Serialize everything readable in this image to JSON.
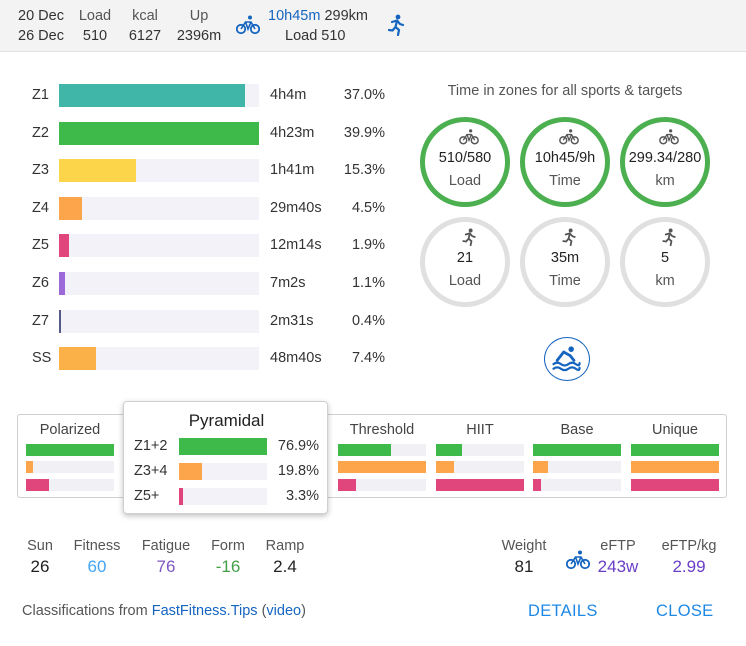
{
  "header": {
    "date_from": "20 Dec",
    "date_to": "26 Dec",
    "load_label": "Load",
    "load_value": "510",
    "kcal_label": "kcal",
    "kcal_value": "6127",
    "up_label": "Up",
    "up_value": "2396m",
    "ride_time": "10h45m",
    "ride_distance": "299km",
    "ride_load": "Load 510"
  },
  "zones": [
    {
      "name": "Z1",
      "time": "4h4m",
      "pct": "37.0%",
      "fill": 0.93,
      "color": "#3fb6a8"
    },
    {
      "name": "Z2",
      "time": "4h23m",
      "pct": "39.9%",
      "fill": 1.0,
      "color": "#3dba4a"
    },
    {
      "name": "Z3",
      "time": "1h41m",
      "pct": "15.3%",
      "fill": 0.385,
      "color": "#fdd54b"
    },
    {
      "name": "Z4",
      "time": "29m40s",
      "pct": "4.5%",
      "fill": 0.115,
      "color": "#fca54b"
    },
    {
      "name": "Z5",
      "time": "12m14s",
      "pct": "1.9%",
      "fill": 0.05,
      "color": "#e0457b"
    },
    {
      "name": "Z6",
      "time": "7m2s",
      "pct": "1.1%",
      "fill": 0.03,
      "color": "#9d68d8"
    },
    {
      "name": "Z7",
      "time": "2m31s",
      "pct": "0.4%",
      "fill": 0.01,
      "color": "#555a8a"
    },
    {
      "name": "SS",
      "time": "48m40s",
      "pct": "7.4%",
      "fill": 0.185,
      "color": "#fcb148"
    }
  ],
  "targets": {
    "title": "Time in zones for all sports & targets",
    "ride": [
      {
        "value": "510/580",
        "label": "Load",
        "icon": "bike-icon"
      },
      {
        "value": "10h45/9h",
        "label": "Time",
        "icon": "bike-icon"
      },
      {
        "value": "299.34/280",
        "label": "km",
        "icon": "bike-icon"
      }
    ],
    "run": [
      {
        "value": "21",
        "label": "Load",
        "icon": "run-icon"
      },
      {
        "value": "35m",
        "label": "Time",
        "icon": "run-icon"
      },
      {
        "value": "5",
        "label": "km",
        "icon": "run-icon"
      }
    ]
  },
  "classification": {
    "columns": [
      {
        "name": "Polarized",
        "bars": [
          1.0,
          0.08,
          0.26
        ]
      },
      {
        "name": "Threshold",
        "bars": [
          0.6,
          1.0,
          0.2
        ]
      },
      {
        "name": "HIIT",
        "bars": [
          0.3,
          0.2,
          1.0
        ]
      },
      {
        "name": "Base",
        "bars": [
          1.0,
          0.17,
          0.09
        ]
      },
      {
        "name": "Unique",
        "bars": [
          1.0,
          1.0,
          1.0
        ]
      }
    ],
    "bar_colors": [
      "#3dba4a",
      "#fca54b",
      "#e0457b"
    ]
  },
  "popup": {
    "title": "Pyramidal",
    "rows": [
      {
        "name": "Z1+2",
        "pct": "76.9%",
        "fill": 1.0,
        "color": "#3dba4a"
      },
      {
        "name": "Z3+4",
        "pct": "19.8%",
        "fill": 0.26,
        "color": "#fca54b"
      },
      {
        "name": "Z5+",
        "pct": "3.3%",
        "fill": 0.045,
        "color": "#e0457b"
      }
    ]
  },
  "stats": {
    "sun_label": "Sun",
    "sun_value": "26",
    "fitness_label": "Fitness",
    "fitness_value": "60",
    "fatigue_label": "Fatigue",
    "fatigue_value": "76",
    "form_label": "Form",
    "form_value": "-16",
    "ramp_label": "Ramp",
    "ramp_value": "2.4",
    "weight_label": "Weight",
    "weight_value": "81",
    "eftp_label": "eFTP",
    "eftp_value": "243w",
    "eftpkg_label": "eFTP/kg",
    "eftpkg_value": "2.99"
  },
  "footer": {
    "prefix": "Classifications from ",
    "link": "FastFitness.Tips",
    "paren_open": " (",
    "video": "video",
    "paren_close": ")",
    "details": "DETAILS",
    "close": "CLOSE"
  },
  "colors": {
    "fitness": "#42a5f5",
    "fatigue": "#7e57c2",
    "form": "#43a047",
    "accent": "#1565c0"
  }
}
